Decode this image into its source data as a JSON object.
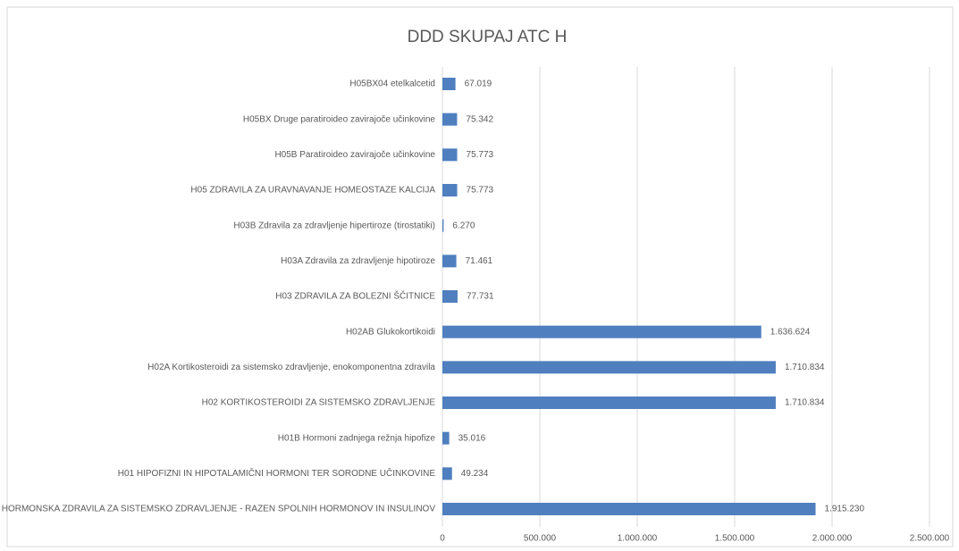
{
  "chart_data": {
    "type": "bar",
    "orientation": "horizontal",
    "title": "DDD SKUPAJ ATC H",
    "categories": [
      "H05BX04 etelkalcetid",
      "H05BX Druge paratiroideo zavirajoče učinkovine",
      "H05B Paratiroideo zavirajoče učinkovine",
      "H05 ZDRAVILA ZA URAVNAVANJE HOMEOSTAZE KALCIJA",
      "H03B Zdravila za zdravljenje hipertiroze (tirostatiki)",
      "H03A Zdravila za zdravljenje hipotiroze",
      "H03 ZDRAVILA ZA BOLEZNI ŠČITNICE",
      "H02AB Glukokortikoidi",
      "H02A Kortikosteroidi za sistemsko zdravljenje, enokomponentna zdravila",
      "H02 KORTIKOSTEROIDI ZA SISTEMSKO ZDRAVLJENJE",
      "H01B Hormoni zadnjega režnja hipofize",
      "H01 HIPOFIZNI IN HIPOTALAMIČNI HORMONI TER SORODNE UČINKOVINE",
      "H HORMONSKA ZDRAVILA ZA SISTEMSKO ZDRAVLJENJE - RAZEN SPOLNIH HORMONOV IN INSULINOV"
    ],
    "values": [
      67019,
      75342,
      75773,
      75773,
      6270,
      71461,
      77731,
      1636624,
      1710834,
      1710834,
      35016,
      49234,
      1915230
    ],
    "value_labels": [
      "67.019",
      "75.342",
      "75.773",
      "75.773",
      "6.270",
      "71.461",
      "77.731",
      "1.636.624",
      "1.710.834",
      "1.710.834",
      "35.016",
      "49.234",
      "1.915.230"
    ],
    "color": "#4f7fbf",
    "xlim": [
      0,
      2500000
    ],
    "xticks": [
      0,
      {
        "value": 500000,
        "label": "500.000"
      },
      {
        "value": 1000000,
        "label": "1.000.000"
      },
      {
        "value": 1500000,
        "label": "1.500.000"
      },
      {
        "value": 2000000,
        "label": "2.000.000"
      },
      {
        "value": 2500000,
        "label": "2.500.000"
      }
    ],
    "grid": true
  }
}
